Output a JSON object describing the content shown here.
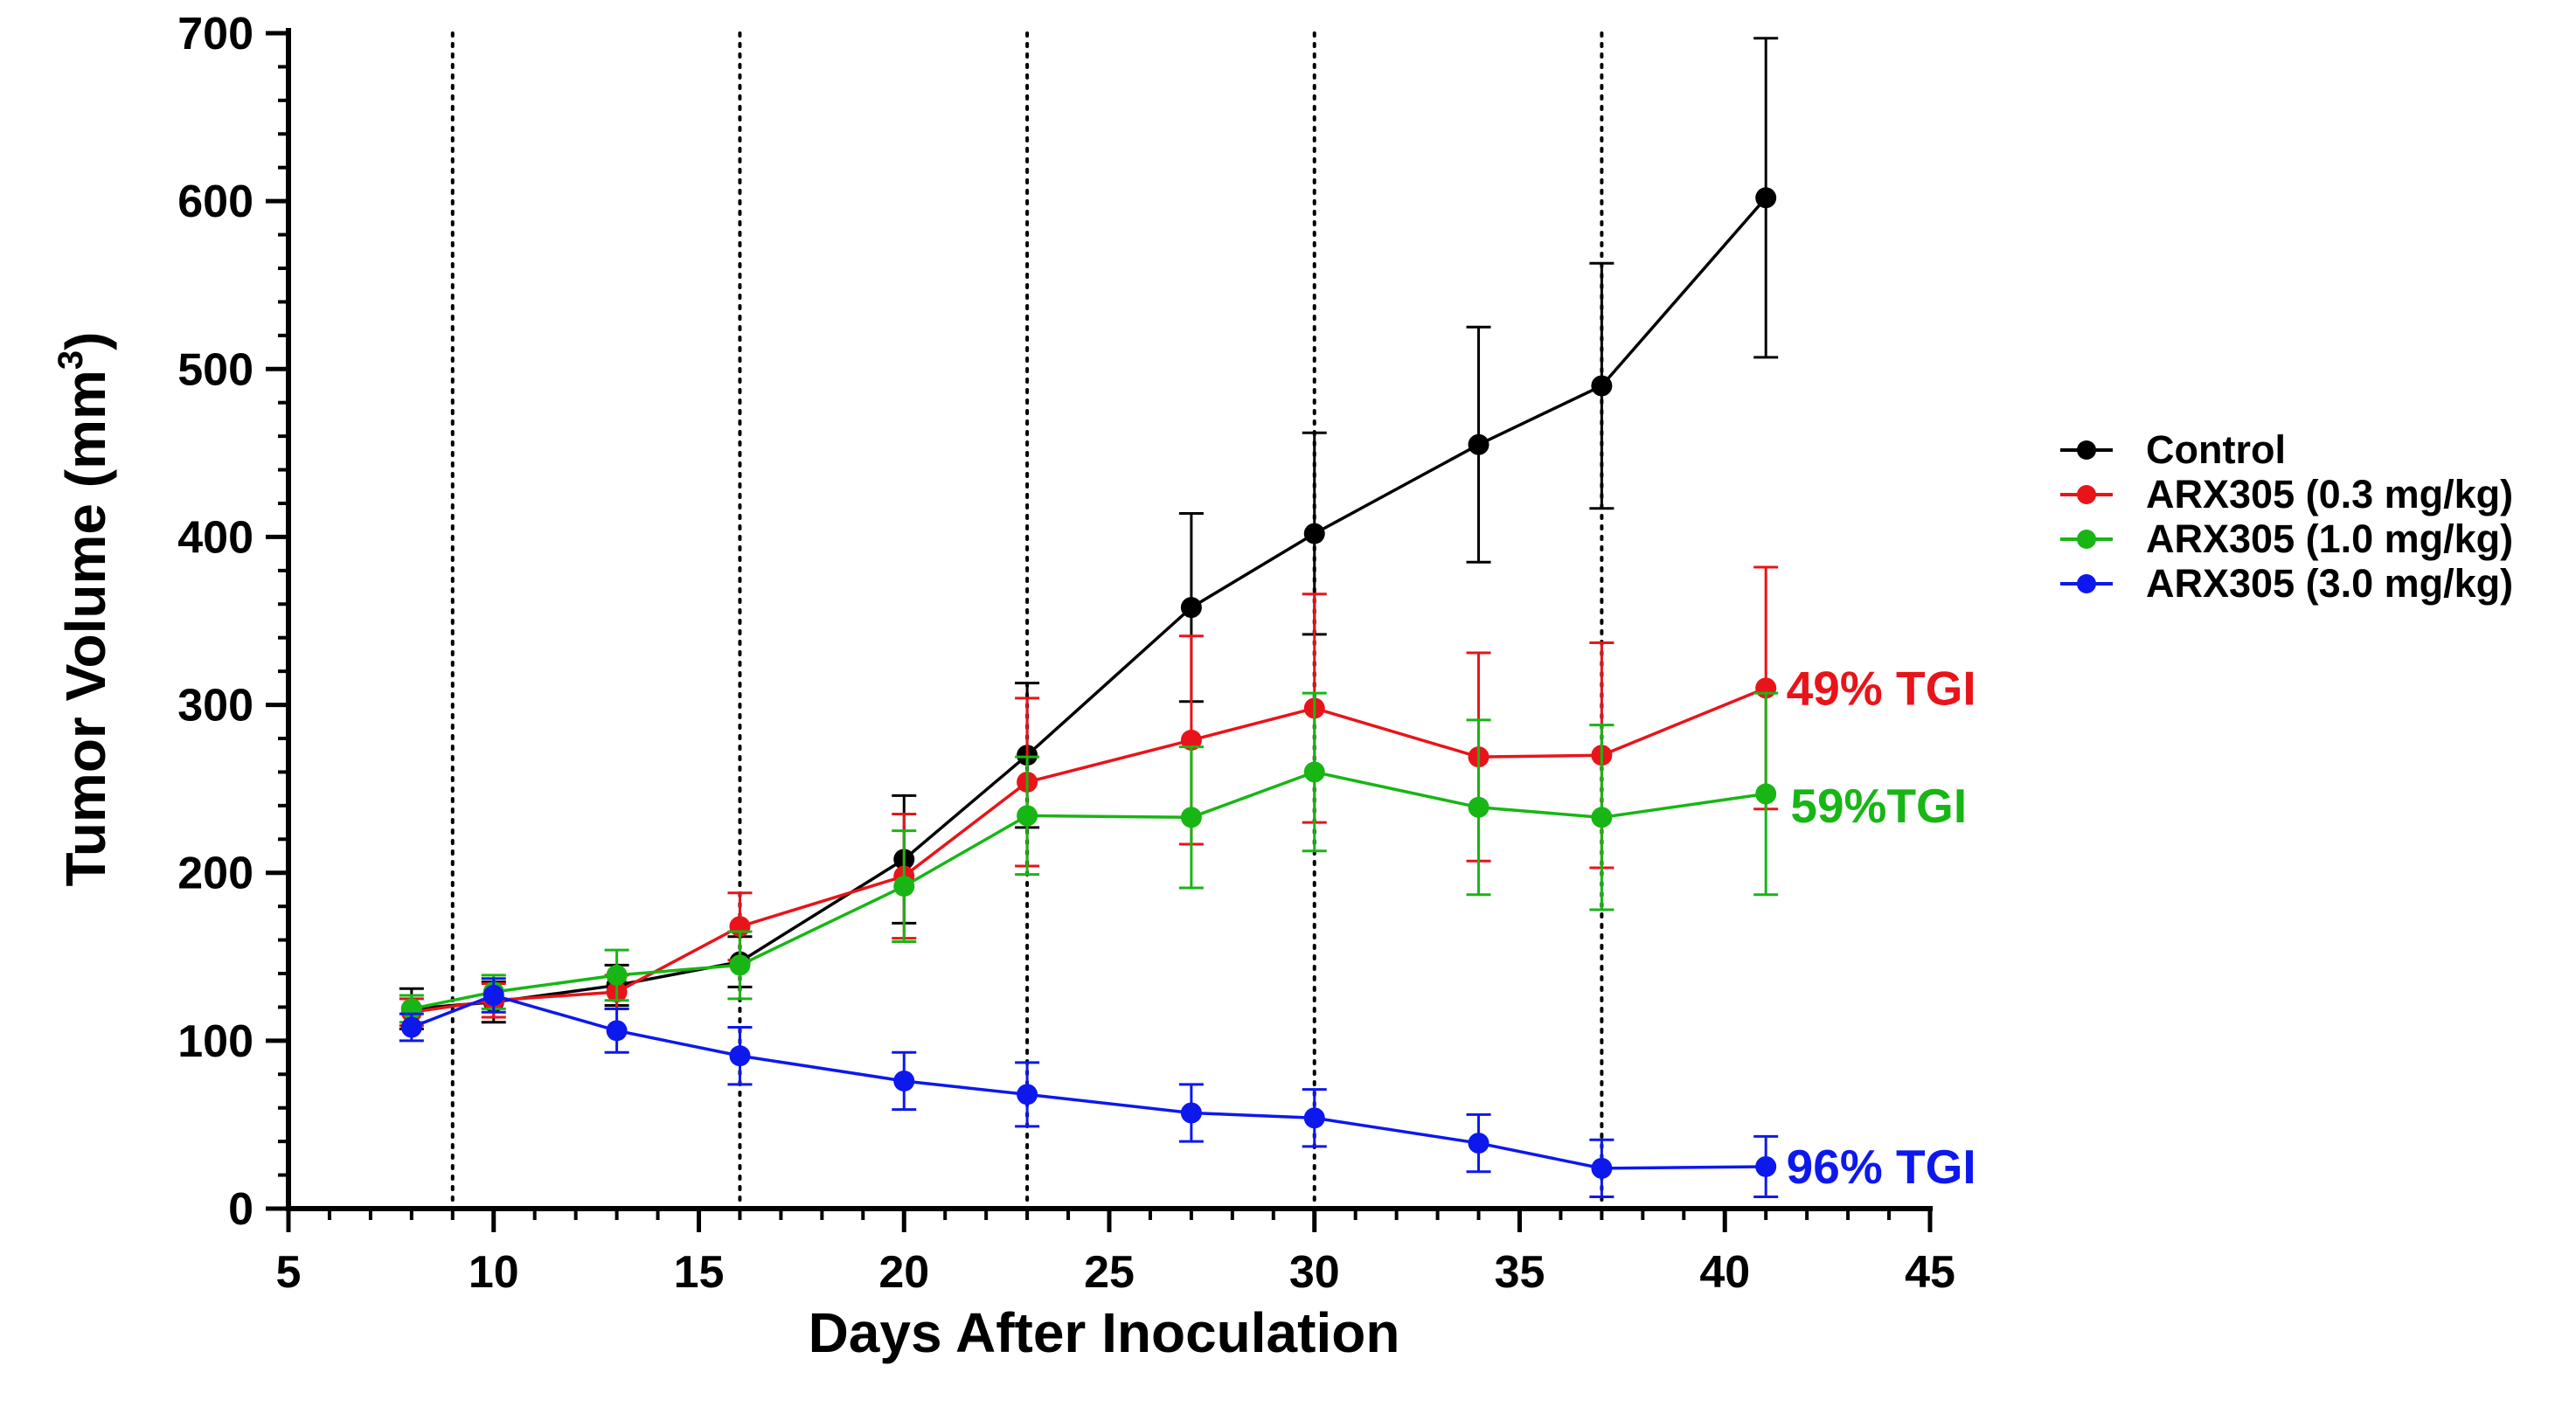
{
  "chart_data": {
    "type": "line",
    "xlabel": "Days After Inoculation",
    "ylabel_main": "Tumor Volume (mm",
    "ylabel_sup": "3",
    "ylabel_close": ")",
    "xlim": [
      5,
      45
    ],
    "ylim": [
      0,
      700
    ],
    "xticks": [
      5,
      10,
      15,
      20,
      25,
      30,
      35,
      40,
      45
    ],
    "yticks": [
      0,
      100,
      200,
      300,
      400,
      500,
      600,
      700
    ],
    "x_minor_step": 1,
    "y_minor_step": 20,
    "dosing_days": [
      9,
      16,
      23,
      30,
      37
    ],
    "legend_position": "right",
    "series": [
      {
        "name": "Control",
        "color": "#000000",
        "x": [
          8,
          10,
          13,
          16,
          20,
          23,
          27,
          30,
          34,
          37,
          41
        ],
        "y": [
          119,
          123,
          133,
          147,
          208,
          270,
          358,
          402,
          455,
          490,
          602
        ],
        "err": [
          12,
          12,
          12,
          15,
          38,
          43,
          56,
          60,
          70,
          73,
          95
        ]
      },
      {
        "name": "ARX305 (0.3 mg/kg)",
        "color": "#e8141a",
        "x": [
          8,
          10,
          13,
          16,
          20,
          23,
          27,
          30,
          34,
          37,
          41
        ],
        "y": [
          117,
          124,
          129,
          168,
          198,
          254,
          279,
          298,
          269,
          270,
          310
        ],
        "err": [
          8,
          10,
          10,
          20,
          37,
          50,
          62,
          68,
          62,
          67,
          72
        ]
      },
      {
        "name": "ARX305 (1.0 mg/kg)",
        "color": "#17b614",
        "x": [
          8,
          10,
          13,
          16,
          20,
          23,
          27,
          30,
          34,
          37,
          41
        ],
        "y": [
          119,
          129,
          139,
          145,
          192,
          234,
          233,
          260,
          239,
          233,
          247
        ],
        "err": [
          8,
          10,
          15,
          20,
          33,
          35,
          42,
          47,
          52,
          55,
          60
        ]
      },
      {
        "name": "ARX305 (3.0 mg/kg)",
        "color": "#0d18ed",
        "x": [
          8,
          10,
          13,
          16,
          20,
          23,
          27,
          30,
          34,
          37,
          41
        ],
        "y": [
          108,
          127,
          106,
          91,
          76,
          68,
          57,
          54,
          39,
          24,
          25
        ],
        "err": [
          8,
          10,
          13,
          17,
          17,
          19,
          17,
          17,
          17,
          17,
          18
        ]
      }
    ],
    "annotations": [
      {
        "text": "49%  TGI",
        "color": "#e8141a",
        "x": 41.5,
        "y": 310
      },
      {
        "text": "59%TGI",
        "color": "#17b614",
        "x": 41.6,
        "y": 240
      },
      {
        "text": "96%  TGI",
        "color": "#0d18ed",
        "x": 41.5,
        "y": 25
      }
    ]
  }
}
